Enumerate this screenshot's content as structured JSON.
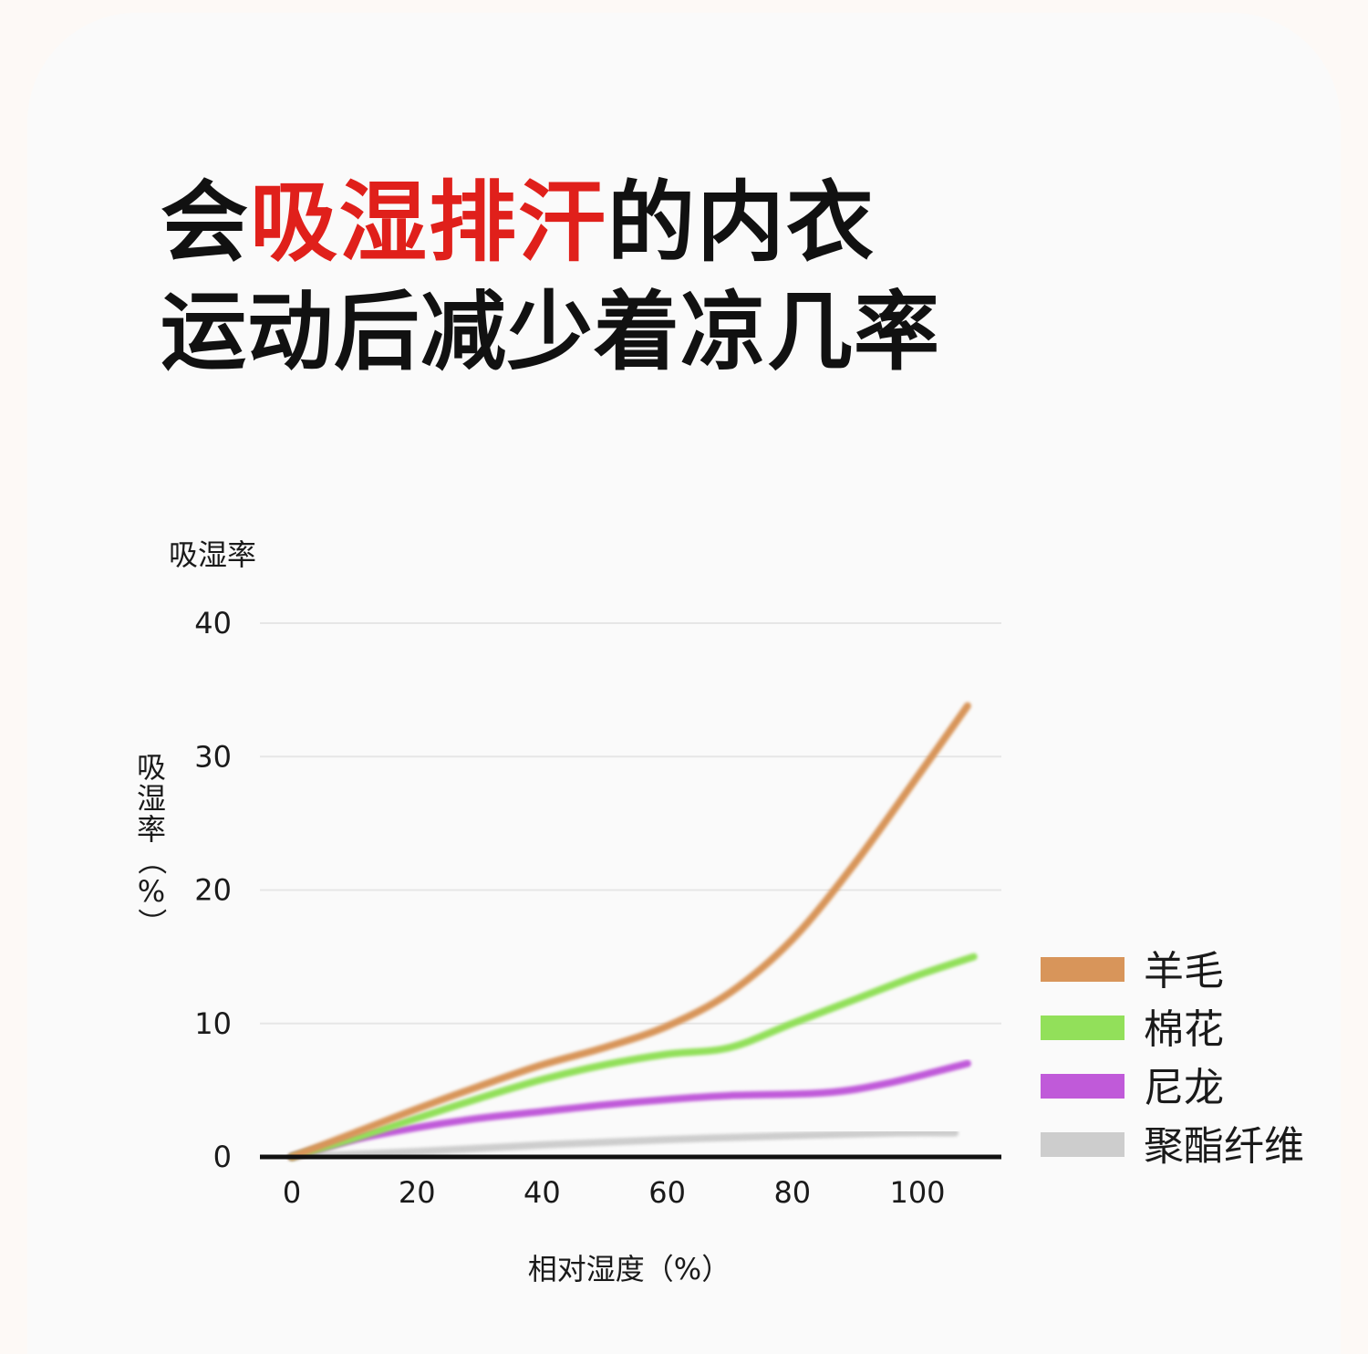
{
  "headline": {
    "prefix": "会",
    "highlight": "吸湿排汗",
    "suffix": "的内衣",
    "highlight_color": "#e0201b"
  },
  "subheadline": "运动后减少着凉几率",
  "chart_data": {
    "type": "line",
    "title": "",
    "corner_label": "吸湿率",
    "xlabel": "相对湿度（%）",
    "ylabel": "吸湿率（%）",
    "xlim": [
      -5,
      113
    ],
    "ylim": [
      0,
      40
    ],
    "xticks": [
      0,
      20,
      40,
      60,
      80,
      100
    ],
    "yticks": [
      0,
      10,
      20,
      30,
      40
    ],
    "grid": true,
    "legend_position": "right",
    "series": [
      {
        "name": "羊毛",
        "color": "#d8955a",
        "points": [
          [
            0,
            0
          ],
          [
            10,
            1.8
          ],
          [
            20,
            3.6
          ],
          [
            30,
            5.3
          ],
          [
            40,
            6.9
          ],
          [
            50,
            8.2
          ],
          [
            60,
            9.8
          ],
          [
            70,
            12.3
          ],
          [
            80,
            16.3
          ],
          [
            90,
            22.0
          ],
          [
            100,
            28.5
          ],
          [
            108,
            33.8
          ]
        ]
      },
      {
        "name": "棉花",
        "color": "#92e05a",
        "points": [
          [
            0,
            0
          ],
          [
            10,
            1.4
          ],
          [
            20,
            2.9
          ],
          [
            30,
            4.4
          ],
          [
            40,
            5.8
          ],
          [
            50,
            6.9
          ],
          [
            60,
            7.7
          ],
          [
            70,
            8.2
          ],
          [
            80,
            10.0
          ],
          [
            90,
            11.8
          ],
          [
            100,
            13.6
          ],
          [
            109,
            15.0
          ]
        ]
      },
      {
        "name": "尼龙",
        "color": "#c05ad9",
        "points": [
          [
            0,
            0
          ],
          [
            10,
            1.3
          ],
          [
            20,
            2.2
          ],
          [
            30,
            2.9
          ],
          [
            40,
            3.4
          ],
          [
            50,
            3.9
          ],
          [
            60,
            4.3
          ],
          [
            70,
            4.6
          ],
          [
            85,
            4.8
          ],
          [
            95,
            5.5
          ],
          [
            108,
            7.0
          ]
        ]
      },
      {
        "name": "聚酯纤维",
        "color": "#cdcdcd",
        "points": [
          [
            0,
            0
          ],
          [
            20,
            0.4
          ],
          [
            40,
            0.9
          ],
          [
            60,
            1.3
          ],
          [
            80,
            1.6
          ],
          [
            97,
            1.8
          ],
          [
            106,
            1.8
          ]
        ]
      }
    ]
  }
}
